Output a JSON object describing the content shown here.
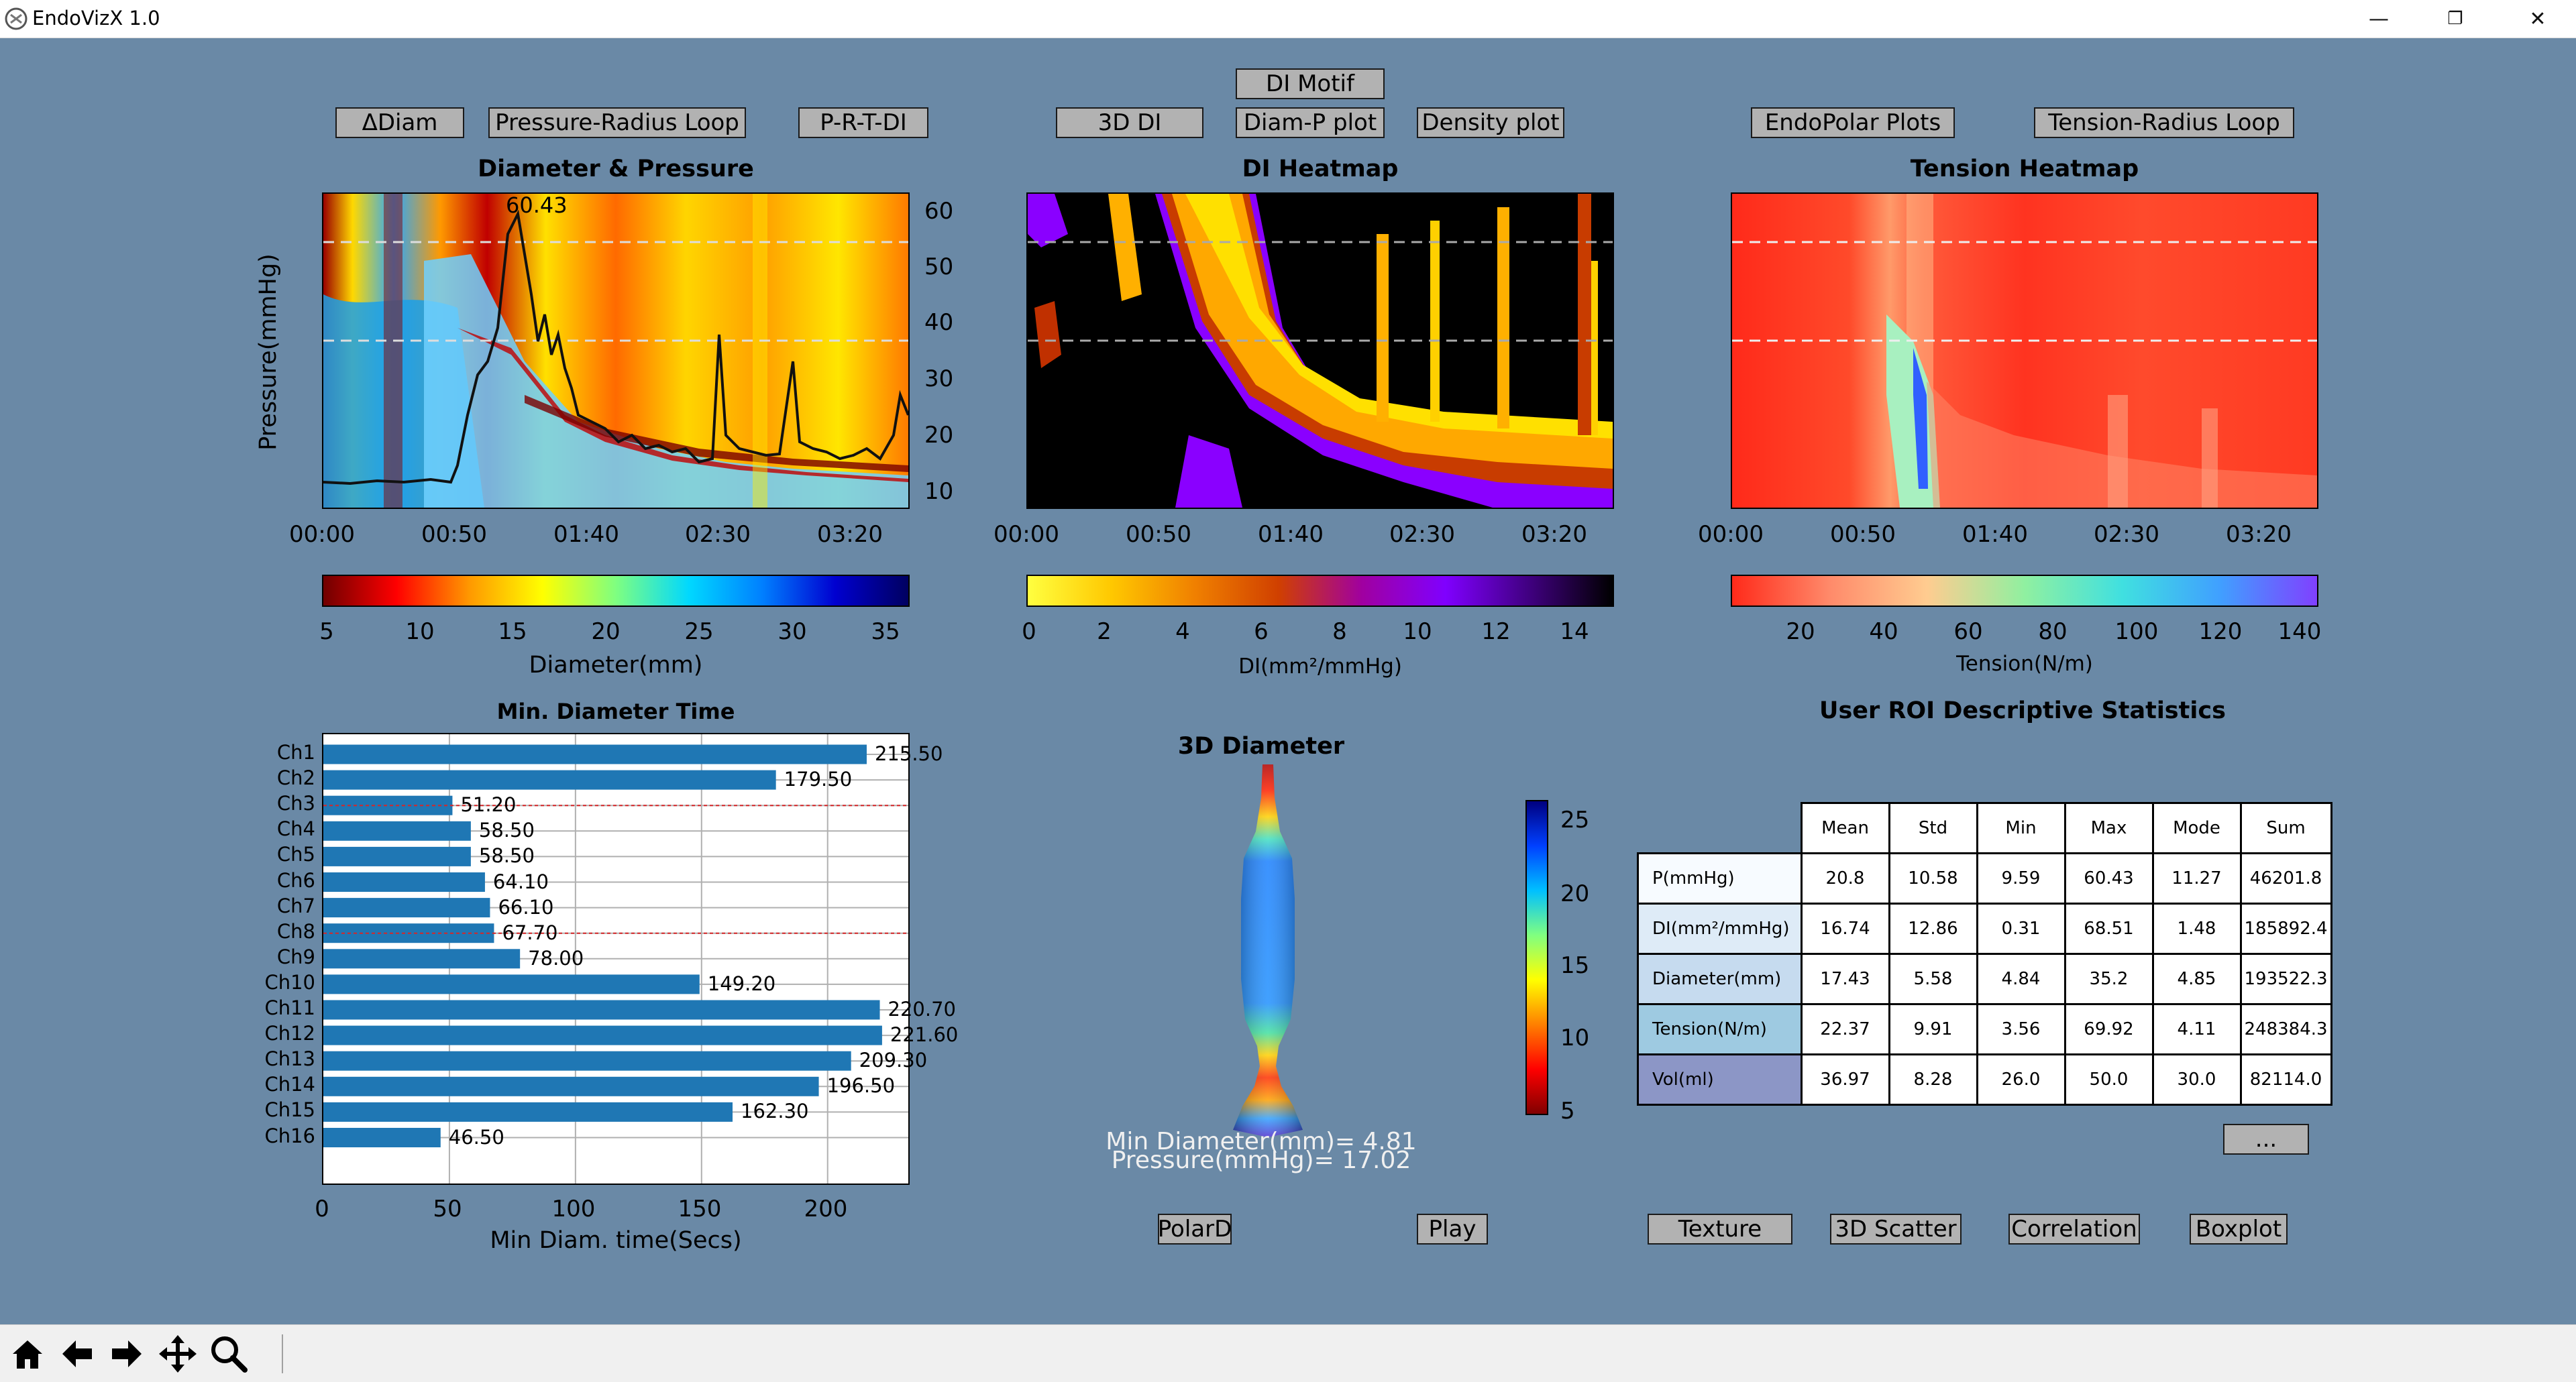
{
  "window": {
    "title": "EndoVizX 1.0",
    "minimize": "—",
    "restore": "❐",
    "close": "✕"
  },
  "buttons": {
    "ddiam": "ΔDiam",
    "pressure_radius_loop": "Pressure-Radius Loop",
    "prtdi": "P-R-T-DI",
    "di_motif": "DI Motif",
    "di_3d": "3D DI",
    "diam_p_plot": "Diam-P plot",
    "density_plot": "Density plot",
    "endopolar_plots": "EndoPolar Plots",
    "tension_radius_loop": "Tension-Radius Loop",
    "polard": "PolarD",
    "play": "Play",
    "texture": "Texture",
    "scatter_3d": "3D Scatter",
    "correlation": "Correlation",
    "boxplot": "Boxplot",
    "more": "..."
  },
  "diameter_pressure": {
    "title": "Diameter  & Pressure",
    "ylabel": "Pressure(mmHg)",
    "peak_label": "60.43",
    "xticks": [
      "00:00",
      "00:50",
      "01:40",
      "02:30",
      "03:20"
    ],
    "yticks": [
      "60",
      "50",
      "40",
      "30",
      "20",
      "10"
    ],
    "colorbar_ticks": [
      "5",
      "10",
      "15",
      "20",
      "25",
      "30",
      "35"
    ],
    "colorbar_label": "Diameter(mm)"
  },
  "di_heatmap": {
    "title": "DI Heatmap",
    "xticks": [
      "00:00",
      "00:50",
      "01:40",
      "02:30",
      "03:20"
    ],
    "colorbar_ticks": [
      "0",
      "2",
      "4",
      "6",
      "8",
      "10",
      "12",
      "14"
    ],
    "colorbar_label": "DI(mm²/mmHg)"
  },
  "tension_heatmap": {
    "title": "Tension Heatmap",
    "xticks": [
      "00:00",
      "00:50",
      "01:40",
      "02:30",
      "03:20"
    ],
    "colorbar_ticks": [
      "20",
      "40",
      "60",
      "80",
      "100",
      "120",
      "140"
    ],
    "colorbar_label": "Tension(N/m)"
  },
  "min_diameter_time": {
    "title": "Min. Diameter Time",
    "xlabel": "Min Diam. time(Secs)",
    "xticks": [
      "0",
      "50",
      "100",
      "150",
      "200"
    ]
  },
  "chart_data": {
    "type": "bar",
    "orientation": "horizontal",
    "title": "Min. Diameter Time",
    "xlabel": "Min Diam. time(Secs)",
    "ylabel": "",
    "xlim": [
      0,
      232
    ],
    "grid": true,
    "categories": [
      "Ch1",
      "Ch2",
      "Ch3",
      "Ch4",
      "Ch5",
      "Ch6",
      "Ch7",
      "Ch8",
      "Ch9",
      "Ch10",
      "Ch11",
      "Ch12",
      "Ch13",
      "Ch14",
      "Ch15",
      "Ch16"
    ],
    "values": [
      215.5,
      179.5,
      51.2,
      58.5,
      58.5,
      64.1,
      66.1,
      67.7,
      78.0,
      149.2,
      220.7,
      221.6,
      209.3,
      196.5,
      162.3,
      46.5
    ],
    "value_labels": [
      "215.50",
      "179.50",
      "51.20",
      "58.50",
      "58.50",
      "64.10",
      "66.10",
      "67.70",
      "78.00",
      "149.20",
      "220.70",
      "221.60",
      "209.30",
      "196.50",
      "162.30",
      "46.50"
    ],
    "highlighted": [
      "Ch3",
      "Ch8"
    ],
    "bar_color": "#1f77b4",
    "highlight_line_color": "#d62728"
  },
  "diameter_3d": {
    "title": "3D Diameter",
    "min_diameter": "Min Diameter(mm)= 4.81",
    "pressure": "Pressure(mmHg)= 17.02",
    "colorbar_ticks": [
      "25",
      "20",
      "15",
      "10",
      "5"
    ]
  },
  "stats": {
    "title": "User ROI Descriptive Statistics",
    "headers": [
      "Mean",
      "Std",
      "Min",
      "Max",
      "Mode",
      "Sum"
    ],
    "rows": [
      {
        "label": "P(mmHg)",
        "color": "#f7fbff",
        "values": [
          "20.8",
          "10.58",
          "9.59",
          "60.43",
          "11.27",
          "46201.8"
        ]
      },
      {
        "label": "DI(mm²/mmHg)",
        "color": "#deebf7",
        "values": [
          "16.74",
          "12.86",
          "0.31",
          "68.51",
          "1.48",
          "185892.4"
        ]
      },
      {
        "label": "Diameter(mm)",
        "color": "#c6dbef",
        "values": [
          "17.43",
          "5.58",
          "4.84",
          "35.2",
          "4.85",
          "193522.3"
        ]
      },
      {
        "label": "Tension(N/m)",
        "color": "#9ecae1",
        "values": [
          "22.37",
          "9.91",
          "3.56",
          "69.92",
          "4.11",
          "248384.3"
        ]
      },
      {
        "label": "Vol(ml)",
        "color": "#8c96c6",
        "values": [
          "36.97",
          "8.28",
          "26.0",
          "50.0",
          "30.0",
          "82114.0"
        ]
      }
    ]
  },
  "toolbar": {
    "icons": [
      "home-icon",
      "back-arrow-icon",
      "forward-arrow-icon",
      "pan-icon",
      "zoom-icon"
    ]
  },
  "colors": {
    "background": "#6a89a6",
    "button": "#b2b2b2"
  }
}
